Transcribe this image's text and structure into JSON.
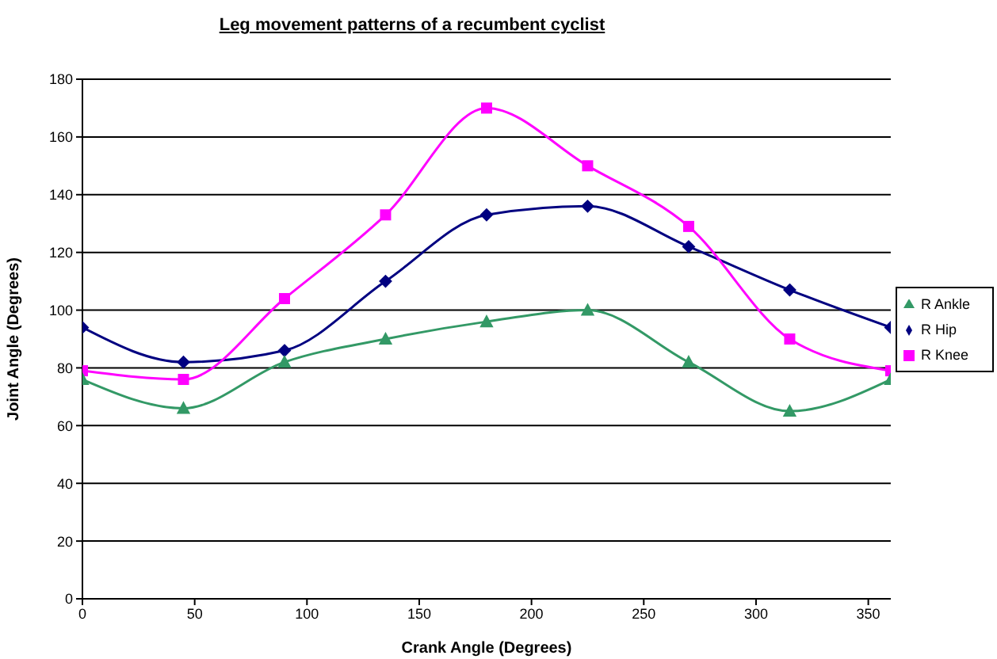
{
  "chart_data": {
    "type": "line",
    "title": "Leg movement patterns of a recumbent cyclist",
    "xlabel": "Crank Angle (Degrees)",
    "ylabel": "Joint Angle (Degrees)",
    "x": [
      0,
      45,
      90,
      135,
      180,
      225,
      270,
      315,
      360
    ],
    "series": [
      {
        "name": "R Hip",
        "color": "#000080",
        "marker": "diamond",
        "values": [
          94,
          82,
          86,
          110,
          133,
          136,
          122,
          107,
          94
        ]
      },
      {
        "name": "R Knee",
        "color": "#ff00ff",
        "marker": "square",
        "values": [
          79,
          76,
          104,
          133,
          170,
          150,
          129,
          90,
          79
        ]
      },
      {
        "name": "R Ankle",
        "color": "#339966",
        "marker": "triangle",
        "values": [
          76,
          66,
          82,
          90,
          96,
          100,
          82,
          65,
          76
        ]
      }
    ],
    "xlim": [
      0,
      360
    ],
    "xticks": [
      0,
      50,
      100,
      150,
      200,
      250,
      300,
      350
    ],
    "ylim": [
      0,
      180
    ],
    "yticks": [
      0,
      20,
      40,
      60,
      80,
      100,
      120,
      140,
      160,
      180
    ],
    "grid": "y",
    "legend": "right"
  }
}
